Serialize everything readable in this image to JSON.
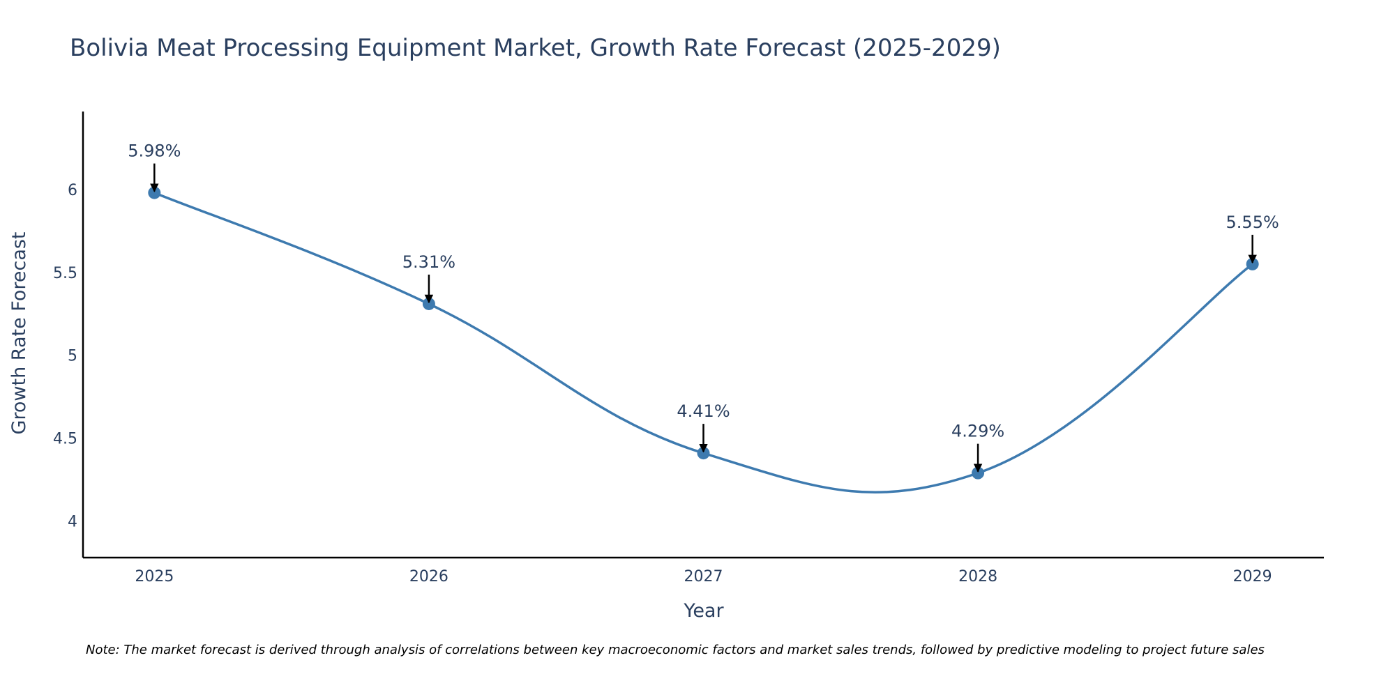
{
  "chart_data": {
    "type": "line",
    "title": "Bolivia Meat Processing Equipment Market, Growth Rate Forecast (2025-2029)",
    "xlabel": "Year",
    "ylabel": "Growth Rate Forecast",
    "categories": [
      "2025",
      "2026",
      "2027",
      "2028",
      "2029"
    ],
    "series": [
      {
        "name": "Growth Rate Forecast",
        "values": [
          5.98,
          5.31,
          4.41,
          4.29,
          5.55
        ],
        "color": "#3d7aaf"
      }
    ],
    "annotations": [
      "5.98%",
      "5.31%",
      "4.41%",
      "4.29%",
      "5.55%"
    ],
    "yticks": [
      "4",
      "4.5",
      "5",
      "5.5",
      "6"
    ],
    "ytick_values": [
      4,
      4.5,
      5,
      5.5,
      6
    ],
    "ylim": [
      3.78,
      6.47
    ],
    "xlim": [
      -0.26,
      4.26
    ],
    "grid": false,
    "line_shape": "spline",
    "marker_color": "#3d7aaf",
    "arrow_color": "#000000",
    "text_color": "#2a3f5f",
    "axis_color": "#000000"
  },
  "note": "Note: The market forecast is derived through analysis of correlations between key macroeconomic factors and market sales trends, followed by predictive modeling to project future sales"
}
